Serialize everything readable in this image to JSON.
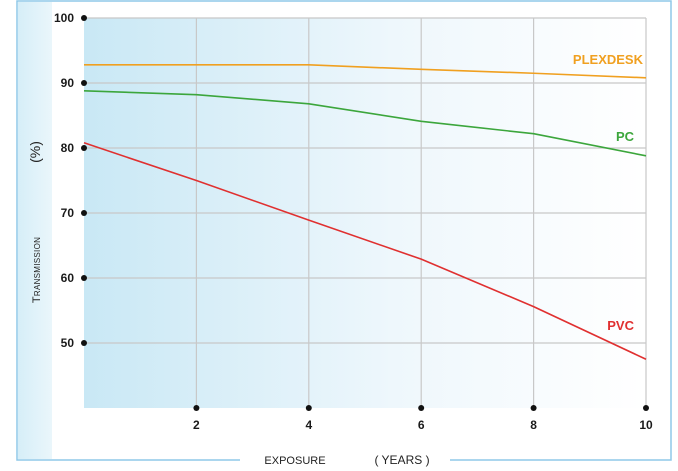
{
  "chart_data": {
    "type": "line",
    "xlabel": "EXPOSURE",
    "xlabel_unit": "( YEARS )",
    "ylabel": "Transmission",
    "ylabel_unit": "(%)",
    "x_ticks": [
      2,
      4,
      6,
      8,
      10
    ],
    "y_ticks": [
      50,
      60,
      70,
      80,
      90,
      100
    ],
    "xlim": [
      0,
      10
    ],
    "ylim": [
      40,
      100
    ],
    "grid": true,
    "colors": {
      "PLEXDESK": "#f0a020",
      "PC": "#3ca63c",
      "PVC": "#e03030",
      "grid": "#c8c8c8",
      "bg_gradient": "#c9e8f5",
      "frame": "#8fc8e8"
    },
    "x": [
      0,
      2,
      4,
      6,
      8,
      10
    ],
    "series": [
      {
        "name": "PLEXDESK",
        "values": [
          92.8,
          92.8,
          92.8,
          92.1,
          91.5,
          90.8
        ]
      },
      {
        "name": "PC",
        "values": [
          88.8,
          88.2,
          86.8,
          84.1,
          82.2,
          78.8
        ]
      },
      {
        "name": "PVC",
        "values": [
          80.8,
          75.0,
          68.9,
          62.9,
          55.6,
          47.5
        ]
      }
    ]
  }
}
